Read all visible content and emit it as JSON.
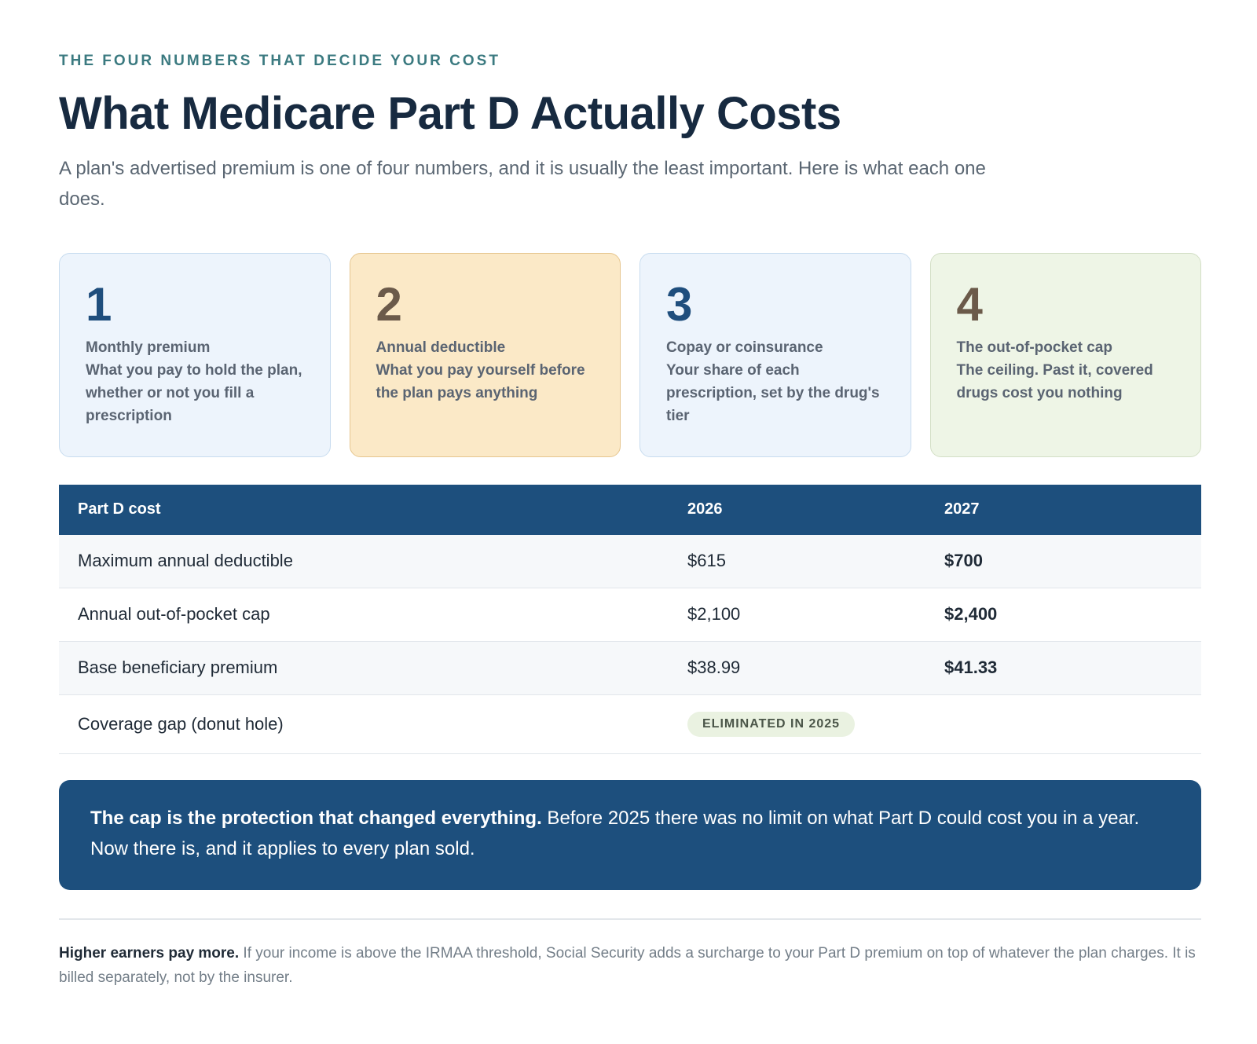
{
  "header": {
    "eyebrow": "THE FOUR NUMBERS THAT DECIDE YOUR COST",
    "title": "What Medicare Part D Actually Costs",
    "subtitle": "A plan's advertised premium is one of four numbers, and it is usually the least important. Here is what each one does."
  },
  "cards": [
    {
      "num": "1",
      "label": "Monthly premium",
      "desc": "What you pay to hold the plan, whether or not you fill a prescription",
      "tone": "blue"
    },
    {
      "num": "2",
      "label": "Annual deductible",
      "desc": "What you pay yourself before the plan pays anything",
      "tone": "amber"
    },
    {
      "num": "3",
      "label": "Copay or coinsurance",
      "desc": "Your share of each prescription, set by the drug's tier",
      "tone": "blue"
    },
    {
      "num": "4",
      "label": "The out-of-pocket cap",
      "desc": "The ceiling. Past it, covered drugs cost you nothing",
      "tone": "green"
    }
  ],
  "table": {
    "headers": [
      "Part D cost",
      "2026",
      "2027"
    ],
    "rows": [
      {
        "label": "Maximum annual deductible",
        "v2026": "$615",
        "v2027": "$700"
      },
      {
        "label": "Annual out-of-pocket cap",
        "v2026": "$2,100",
        "v2027": "$2,400"
      },
      {
        "label": "Base beneficiary premium",
        "v2026": "$38.99",
        "v2027": "$41.33"
      },
      {
        "label": "Coverage gap (donut hole)",
        "badge": "ELIMINATED IN 2025"
      }
    ]
  },
  "callout": {
    "strong": "The cap is the protection that changed everything.",
    "text": " Before 2025 there was no limit on what Part D could cost you in a year. Now there is, and it applies to every plan sold."
  },
  "footnote": {
    "strong": "Higher earners pay more.",
    "text": " If your income is above the IRMAA threshold, Social Security adds a surcharge to your Part D premium on top of whatever the plan charges. It is billed separately, not by the insurer."
  },
  "colors": {
    "accent_teal": "#3b7a80",
    "navy": "#1d4f7d",
    "card_blue": "#edf4fc",
    "card_amber": "#fbe9c7",
    "card_green": "#eef5e6"
  }
}
